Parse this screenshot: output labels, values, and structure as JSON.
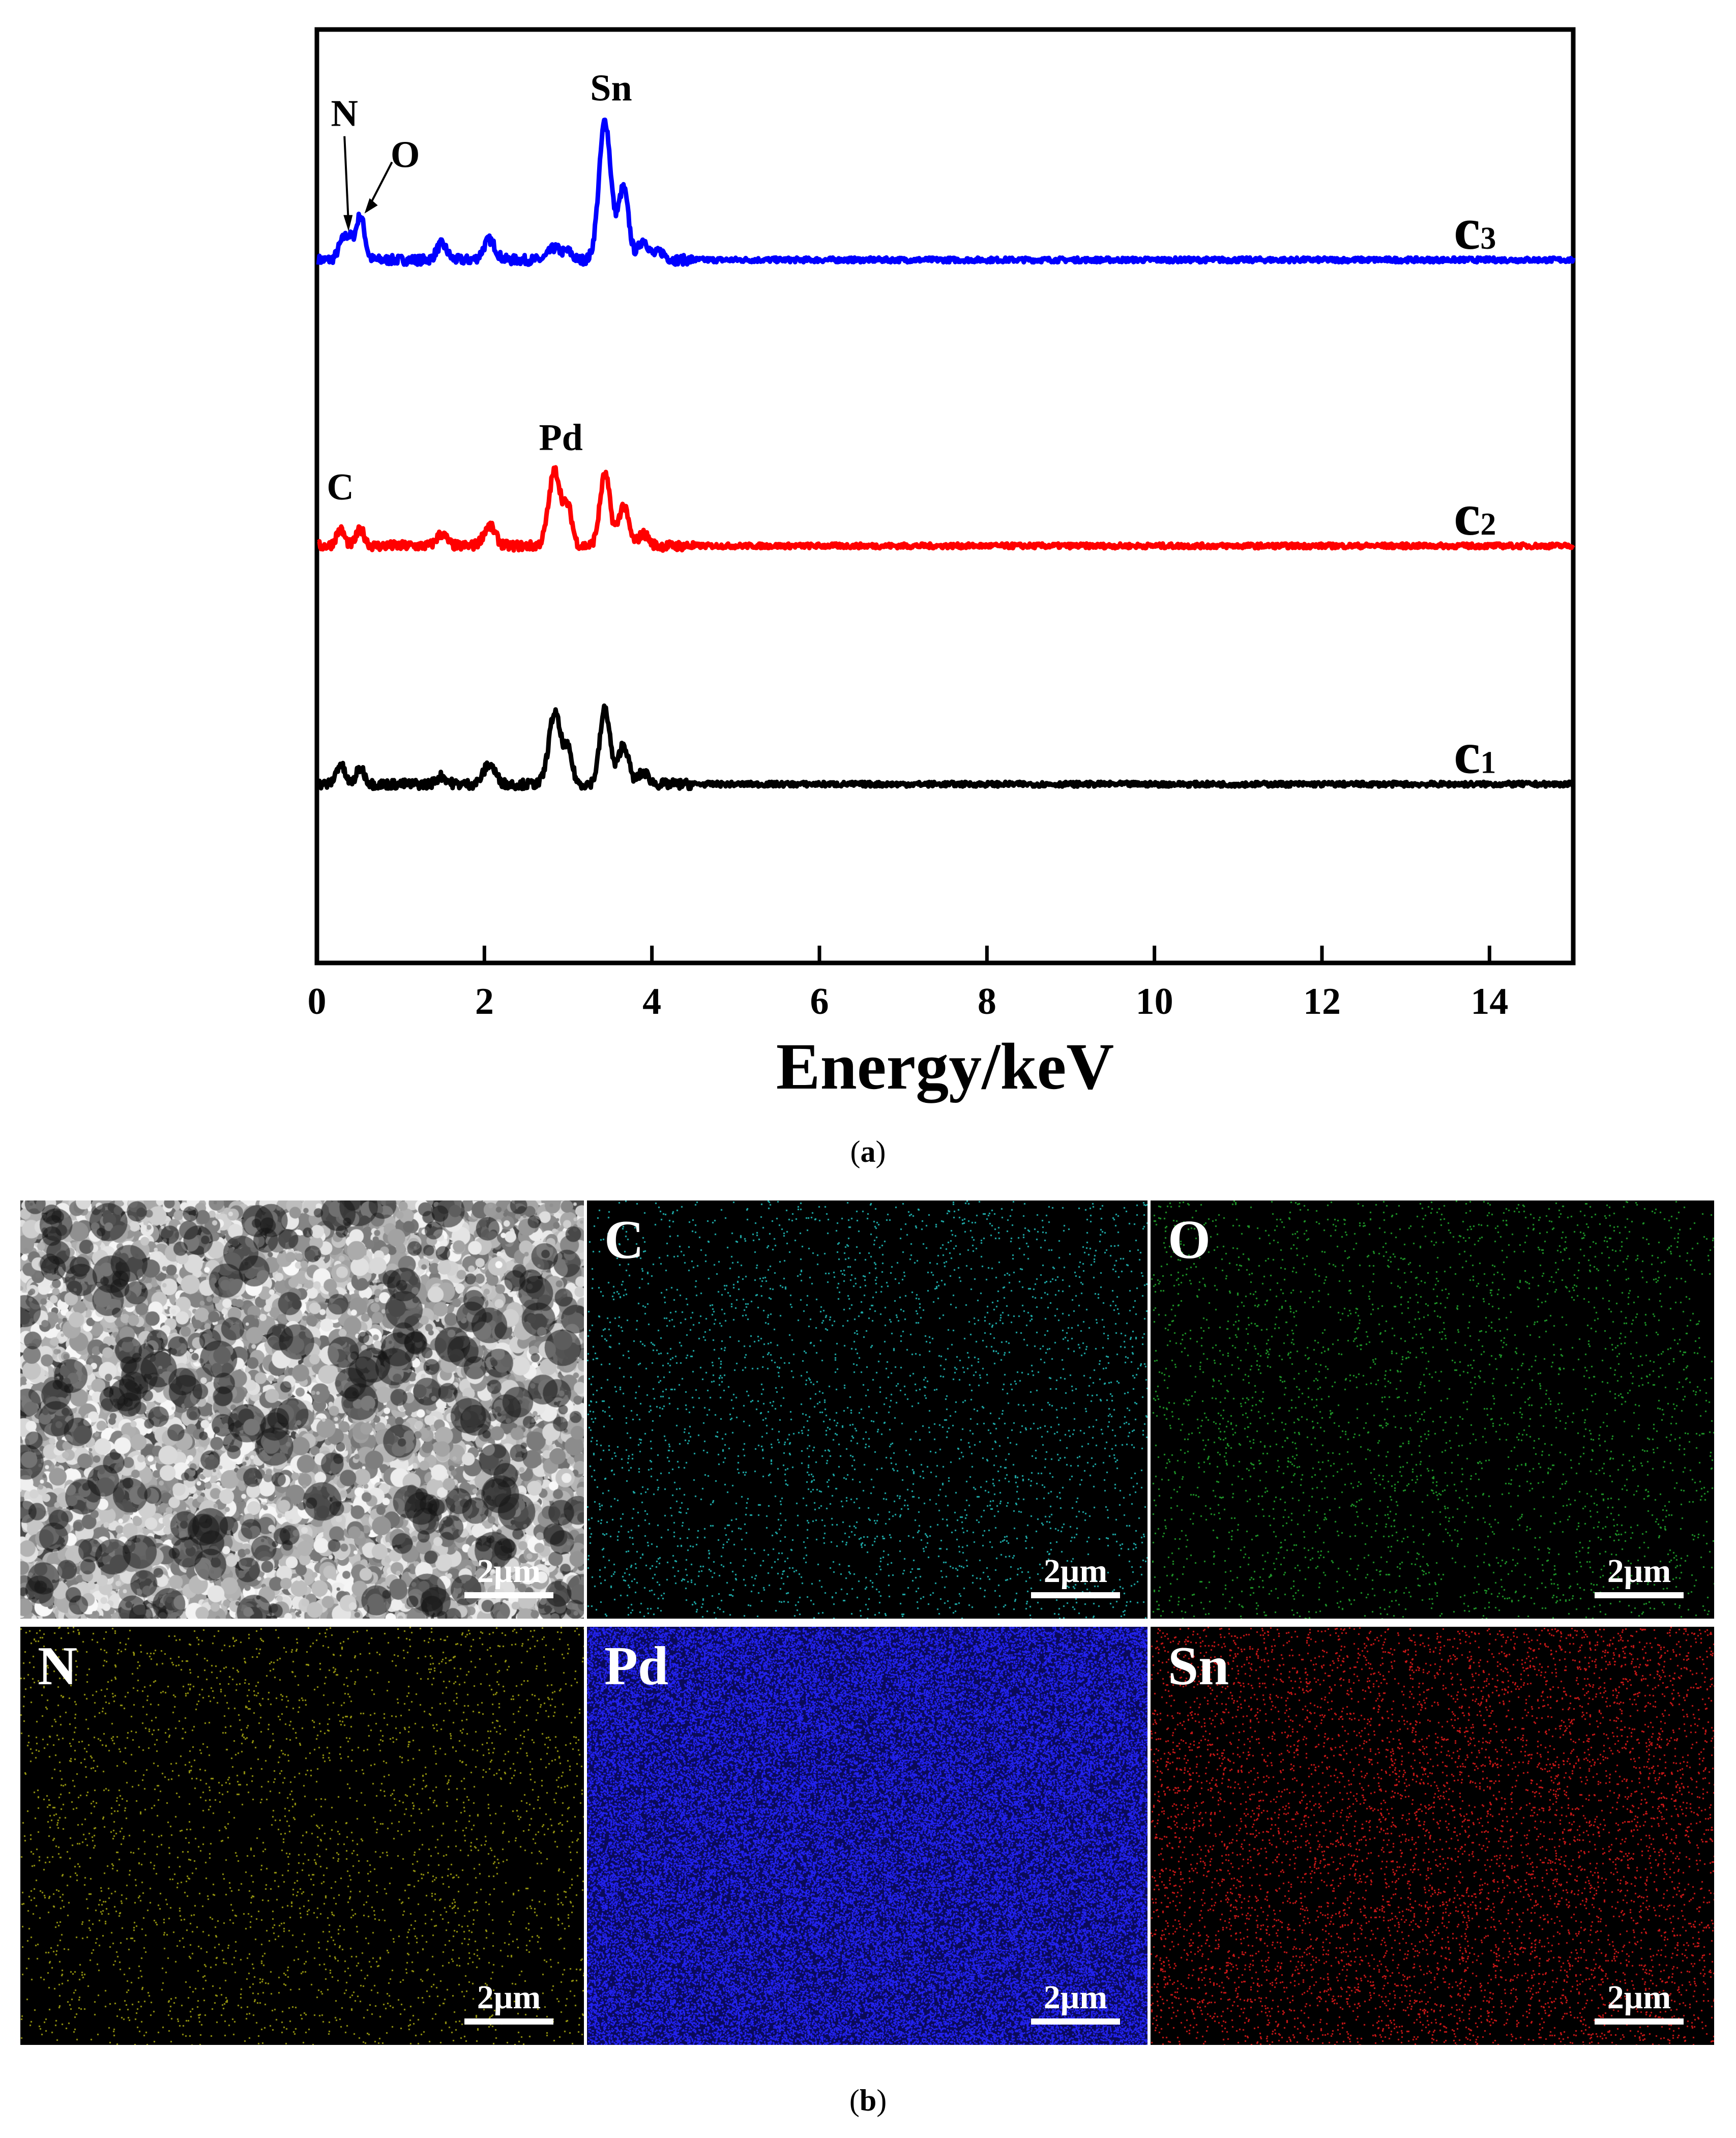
{
  "chart_data": {
    "type": "line",
    "title": "",
    "xlabel": "Energy/keV",
    "ylabel": "",
    "xlim": [
      0,
      15
    ],
    "xticks": [
      0,
      2,
      4,
      6,
      8,
      10,
      12,
      14
    ],
    "yaxis_ticks": "none",
    "grid": false,
    "series": [
      {
        "name": "c3",
        "label_main": "c",
        "label_sub": "3",
        "color": "#0000ff",
        "baseline": 0.72,
        "peaks": [
          {
            "x": 0.3,
            "height": 0.04,
            "width": 0.05
          },
          {
            "x": 0.39,
            "height": 0.05,
            "width": 0.05
          },
          {
            "x": 0.52,
            "height": 0.11,
            "width": 0.05
          },
          {
            "x": 1.49,
            "height": 0.04,
            "width": 0.06
          },
          {
            "x": 2.06,
            "height": 0.05,
            "width": 0.07
          },
          {
            "x": 2.84,
            "height": 0.03,
            "width": 0.07
          },
          {
            "x": 3.0,
            "height": 0.02,
            "width": 0.05
          },
          {
            "x": 3.44,
            "height": 0.35,
            "width": 0.07
          },
          {
            "x": 3.66,
            "height": 0.18,
            "width": 0.06
          },
          {
            "x": 3.9,
            "height": 0.05,
            "width": 0.06
          },
          {
            "x": 4.1,
            "height": 0.02,
            "width": 0.06
          }
        ]
      },
      {
        "name": "c2",
        "label_main": "c",
        "label_sub": "2",
        "color": "#ff0000",
        "baseline": 0.0,
        "peaks": [
          {
            "x": 0.28,
            "height": 0.04,
            "width": 0.05
          },
          {
            "x": 0.52,
            "height": 0.04,
            "width": 0.05
          },
          {
            "x": 1.49,
            "height": 0.03,
            "width": 0.06
          },
          {
            "x": 2.06,
            "height": 0.05,
            "width": 0.07
          },
          {
            "x": 2.84,
            "height": 0.19,
            "width": 0.07
          },
          {
            "x": 3.0,
            "height": 0.09,
            "width": 0.05
          },
          {
            "x": 3.44,
            "height": 0.18,
            "width": 0.06
          },
          {
            "x": 3.66,
            "height": 0.1,
            "width": 0.06
          },
          {
            "x": 3.9,
            "height": 0.03,
            "width": 0.06
          }
        ]
      },
      {
        "name": "c1",
        "label_main": "c",
        "label_sub": "1",
        "color": "#000000",
        "baseline": -0.6,
        "peaks": [
          {
            "x": 0.28,
            "height": 0.05,
            "width": 0.05
          },
          {
            "x": 0.52,
            "height": 0.04,
            "width": 0.05
          },
          {
            "x": 1.49,
            "height": 0.02,
            "width": 0.06
          },
          {
            "x": 2.06,
            "height": 0.05,
            "width": 0.07
          },
          {
            "x": 2.84,
            "height": 0.18,
            "width": 0.07
          },
          {
            "x": 3.0,
            "height": 0.08,
            "width": 0.05
          },
          {
            "x": 3.44,
            "height": 0.19,
            "width": 0.06
          },
          {
            "x": 3.66,
            "height": 0.1,
            "width": 0.06
          },
          {
            "x": 3.9,
            "height": 0.03,
            "width": 0.06
          }
        ]
      }
    ],
    "ylim": [
      -1.05,
      1.3
    ],
    "annotations": [
      {
        "text": "Sn",
        "x": 3.44,
        "series": "c3",
        "arrow": false
      },
      {
        "text": "N",
        "x": 0.39,
        "series": "c3",
        "arrow": true
      },
      {
        "text": "O",
        "x": 0.52,
        "series": "c3",
        "arrow": true
      },
      {
        "text": "Pd",
        "x": 2.84,
        "series": "c2",
        "arrow": false
      },
      {
        "text": "C",
        "x": 0.28,
        "series": "c2",
        "arrow": false
      }
    ]
  },
  "captions": {
    "a": "(a)",
    "a_letter": "a",
    "b": "(b)",
    "b_letter": "b"
  },
  "mapping_panels": [
    {
      "label": "",
      "kind": "sem",
      "color": "#cfcfcf",
      "scale": "2μm"
    },
    {
      "label": "C",
      "kind": "map",
      "color": "#1fb3b0",
      "density": "sparse",
      "scale": "2μm"
    },
    {
      "label": "O",
      "kind": "map",
      "color": "#1f9b2a",
      "density": "sparse",
      "scale": "2μm"
    },
    {
      "label": "N",
      "kind": "map",
      "color": "#9a9a10",
      "density": "sparse",
      "scale": "2μm"
    },
    {
      "label": "Pd",
      "kind": "map",
      "color": "#2222ee",
      "density": "dense",
      "scale": "2μm"
    },
    {
      "label": "Sn",
      "kind": "map",
      "color": "#d01818",
      "density": "medium",
      "scale": "2μm"
    }
  ]
}
